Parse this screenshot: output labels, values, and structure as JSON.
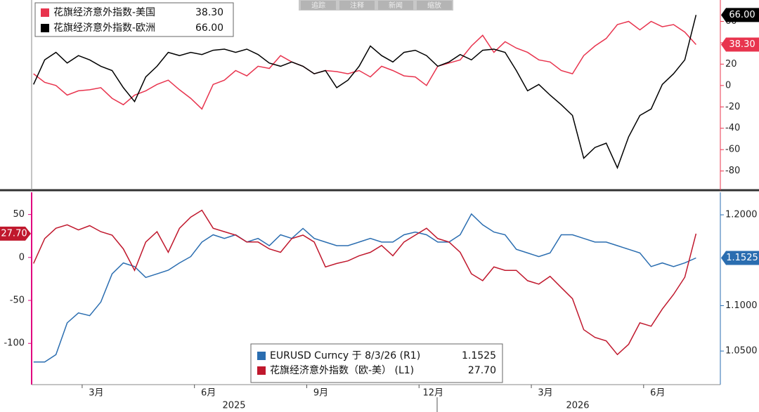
{
  "toolbar": [
    "追踪",
    "注释",
    "新闻",
    "缩放"
  ],
  "chart_data": [
    {
      "type": "line",
      "y_axis_position": "right",
      "axis_color": "#e8344e",
      "xlim": [
        0.65,
        19.05
      ],
      "x": [
        0.7,
        1,
        1.3,
        1.6,
        1.9,
        2.2,
        2.5,
        2.8,
        3.1,
        3.4,
        3.7,
        4,
        4.3,
        4.6,
        4.9,
        5.2,
        5.5,
        5.8,
        6.1,
        6.4,
        6.7,
        7,
        7.3,
        7.6,
        7.9,
        8.2,
        8.5,
        8.8,
        9.1,
        9.4,
        9.7,
        10,
        10.3,
        10.6,
        10.9,
        11.2,
        11.5,
        11.8,
        12.1,
        12.4,
        12.7,
        13,
        13.3,
        13.6,
        13.9,
        14.2,
        14.5,
        14.8,
        15.1,
        15.4,
        15.7,
        16,
        16.3,
        16.6,
        16.9,
        17.2,
        17.5,
        17.8,
        18.1,
        18.4
      ],
      "ylim": [
        -96,
        80
      ],
      "yticks": [
        -80,
        -60,
        -40,
        -20,
        0,
        20,
        40,
        60
      ],
      "series": [
        {
          "name": "花旗经济意外指数-美国",
          "color": "#e8344e",
          "last_label": "38.30",
          "values": [
            11,
            3,
            0,
            -9,
            -5,
            -4,
            -2,
            -12,
            -18,
            -9,
            -5,
            1,
            5,
            -4,
            -12,
            -22,
            1,
            5,
            14,
            9,
            18,
            16,
            28,
            22,
            18,
            11,
            14,
            13,
            11,
            14,
            8,
            18,
            14,
            9,
            8,
            0,
            18,
            21,
            24,
            37,
            47,
            31,
            41,
            35,
            31,
            24,
            22,
            14,
            11,
            28,
            37,
            44,
            57,
            60,
            52,
            60,
            55,
            57,
            50,
            38.3
          ]
        },
        {
          "name": "花旗经济意外指数-欧洲",
          "color": "#000000",
          "last_label": "66.00",
          "values": [
            1,
            24,
            31,
            21,
            28,
            24,
            18,
            14,
            -2,
            -15,
            8,
            18,
            31,
            28,
            31,
            29,
            33,
            34,
            31,
            34,
            29,
            21,
            18,
            22,
            18,
            11,
            14,
            -2,
            5,
            18,
            37,
            28,
            22,
            31,
            33,
            28,
            18,
            22,
            29,
            24,
            33,
            34,
            31,
            14,
            -5,
            1,
            -9,
            -18,
            -28,
            -68,
            -58,
            -54,
            -77,
            -48,
            -28,
            -22,
            1,
            11,
            24,
            66
          ]
        }
      ]
    },
    {
      "type": "line",
      "y_axis_position": "left",
      "axis_color": "#e0007f",
      "xlim": [
        0.65,
        19.05
      ],
      "x": [
        0.7,
        1,
        1.3,
        1.6,
        1.9,
        2.2,
        2.5,
        2.8,
        3.1,
        3.4,
        3.7,
        4,
        4.3,
        4.6,
        4.9,
        5.2,
        5.5,
        5.8,
        6.1,
        6.4,
        6.7,
        7,
        7.3,
        7.6,
        7.9,
        8.2,
        8.5,
        8.8,
        9.1,
        9.4,
        9.7,
        10,
        10.3,
        10.6,
        10.9,
        11.2,
        11.5,
        11.8,
        12.1,
        12.4,
        12.7,
        13,
        13.3,
        13.6,
        13.9,
        14.2,
        14.5,
        14.8,
        15.1,
        15.4,
        15.7,
        16,
        16.3,
        16.6,
        16.9,
        17.2,
        17.5,
        17.8,
        18.1,
        18.4
      ],
      "xticks": [
        {
          "value": 2,
          "label": "3月"
        },
        {
          "value": 5,
          "label": "6月"
        },
        {
          "value": 8,
          "label": "9月"
        },
        {
          "value": 11,
          "label": "12月"
        },
        {
          "value": 14,
          "label": "3月"
        },
        {
          "value": 17,
          "label": "6月"
        }
      ],
      "years": [
        "2025",
        "2026"
      ],
      "ylim": [
        -148,
        75
      ],
      "yticks": [
        -100,
        -50,
        0,
        50
      ],
      "y2lim": [
        1.013,
        1.224
      ],
      "y2ticks": [
        {
          "value": 1.05,
          "label": "1.0500"
        },
        {
          "value": 1.1,
          "label": "1.1000"
        },
        {
          "value": 1.2,
          "label": "1.2000"
        }
      ],
      "series": [
        {
          "name": "EURUSD Curncy 于 8/3/26 (R1)",
          "color": "#2a6db0",
          "axis": "y2",
          "last_label": "1.1525",
          "values": [
            1.038,
            1.038,
            1.046,
            1.081,
            1.092,
            1.089,
            1.104,
            1.135,
            1.147,
            1.143,
            1.131,
            1.135,
            1.139,
            1.147,
            1.154,
            1.17,
            1.178,
            1.174,
            1.178,
            1.17,
            1.174,
            1.166,
            1.178,
            1.174,
            1.185,
            1.174,
            1.17,
            1.166,
            1.166,
            1.17,
            1.174,
            1.17,
            1.17,
            1.178,
            1.181,
            1.178,
            1.17,
            1.17,
            1.178,
            1.201,
            1.189,
            1.181,
            1.178,
            1.162,
            1.158,
            1.154,
            1.158,
            1.178,
            1.178,
            1.174,
            1.17,
            1.17,
            1.166,
            1.162,
            1.158,
            1.143,
            1.147,
            1.143,
            1.147,
            1.1525
          ]
        },
        {
          "name": "花旗经济意外指数（欧-美） (L1)",
          "color": "#c0182d",
          "last_label": "27.70",
          "values": [
            -7,
            22,
            34,
            38,
            32,
            37,
            30,
            26,
            10,
            -15,
            18,
            30,
            6,
            34,
            47,
            55,
            34,
            30,
            26,
            18,
            18,
            10,
            6,
            22,
            26,
            18,
            -11,
            -7,
            -4,
            2,
            6,
            14,
            2,
            18,
            26,
            34,
            22,
            18,
            6,
            -19,
            -27,
            -11,
            -15,
            -15,
            -27,
            -31,
            -22,
            -35,
            -48,
            -84,
            -93,
            -97,
            -113,
            -101,
            -76,
            -80,
            -60,
            -43,
            -23,
            27.7
          ]
        }
      ]
    }
  ]
}
